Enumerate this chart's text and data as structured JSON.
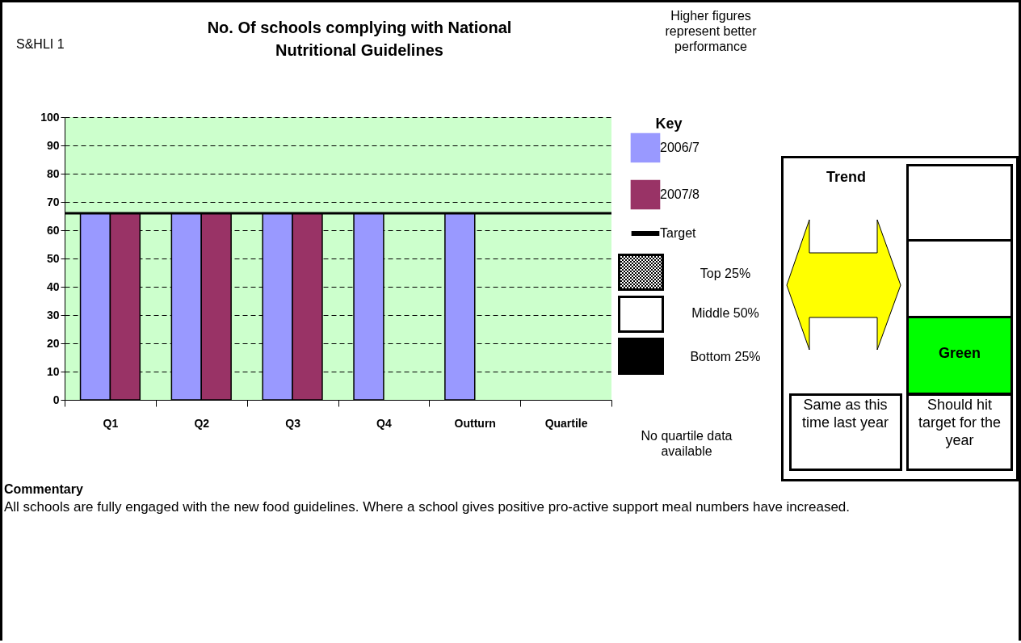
{
  "chart_data": {
    "type": "bar",
    "title": "No. Of schools complying with National Nutritional Guidelines",
    "categories": [
      "Q1",
      "Q2",
      "Q3",
      "Q4",
      "Outturn",
      "Quartile"
    ],
    "series": [
      {
        "name": "2006/7",
        "color": "#9999ff",
        "values": [
          66,
          66,
          66,
          66,
          66,
          null
        ]
      },
      {
        "name": "2007/8",
        "color": "#993366",
        "values": [
          66,
          66,
          66,
          null,
          null,
          null
        ]
      }
    ],
    "ylim": [
      0,
      100
    ],
    "yticks": [
      0,
      10,
      20,
      30,
      40,
      50,
      60,
      70,
      80,
      90,
      100
    ],
    "grid": "y",
    "ref_lines": [
      {
        "axis": "y",
        "value": 66,
        "label": "Target",
        "color": "#000000"
      }
    ],
    "legend": "right",
    "legend_title": "Key",
    "annotations": [
      "S&HLI 1",
      "Higher figures represent better performance",
      "Top 25%",
      "Middle 50%",
      "Bottom 25%",
      "No quartile data available",
      "Trend",
      "Green",
      "Same as this time last year",
      "Should hit target for the year",
      "Commentary",
      "All schools are fully engaged with the new food guidelines. Where a school gives positive pro-active support meal numbers have increased."
    ]
  }
}
